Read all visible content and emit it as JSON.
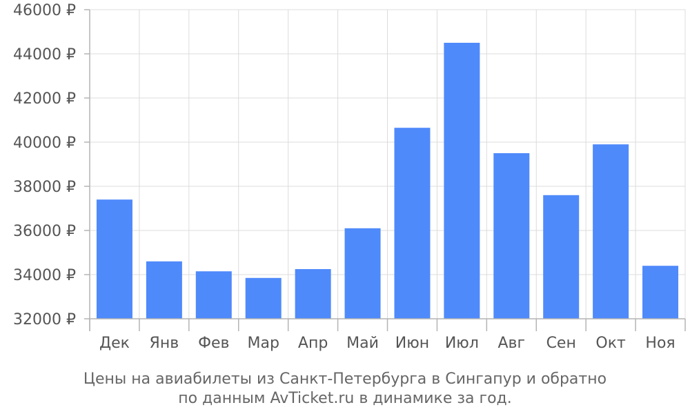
{
  "chart_data": {
    "type": "bar",
    "categories": [
      "Дек",
      "Янв",
      "Фев",
      "Мар",
      "Апр",
      "Май",
      "Июн",
      "Июл",
      "Авг",
      "Сен",
      "Окт",
      "Ноя"
    ],
    "values": [
      37400,
      34600,
      34150,
      33850,
      34250,
      36100,
      40650,
      44500,
      39500,
      37600,
      39900,
      34400
    ],
    "ylim": [
      32000,
      46000
    ],
    "yticks": [
      32000,
      34000,
      36000,
      38000,
      40000,
      42000,
      44000,
      46000
    ],
    "ytick_labels": [
      "32000 ₽",
      "34000 ₽",
      "36000 ₽",
      "38000 ₽",
      "40000 ₽",
      "42000 ₽",
      "44000 ₽",
      "46000 ₽"
    ],
    "caption_lines": [
      "Цены на авиабилеты из Санкт-Петербурга в Сингапур и обратно",
      "по данным AvTicket.ru в динамике за год."
    ],
    "grid": true,
    "bar_color": "#4f8afb"
  }
}
